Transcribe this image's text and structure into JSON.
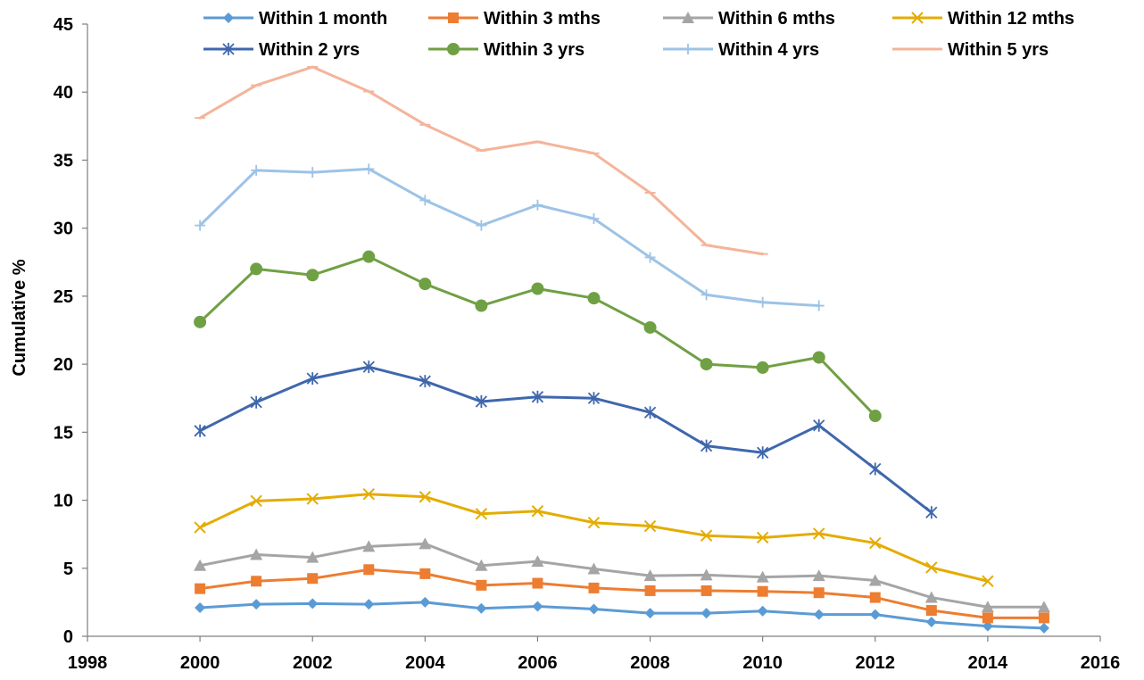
{
  "chart_data": {
    "type": "line",
    "title": "",
    "xlabel": "",
    "ylabel": "Cumulative %",
    "xlim": [
      1998,
      2016
    ],
    "ylim": [
      0,
      45
    ],
    "xticks": [
      "1998",
      "2000",
      "2002",
      "2004",
      "2006",
      "2008",
      "2010",
      "2012",
      "2014",
      "2016"
    ],
    "yticks": [
      "0",
      "5",
      "10",
      "15",
      "20",
      "25",
      "30",
      "35",
      "40",
      "45"
    ],
    "grid": false,
    "legend_position": "top",
    "series": [
      {
        "name": "Within 1 month",
        "color": "#5B9BD5",
        "marker": "diamond",
        "x": [
          2000,
          2001,
          2002,
          2003,
          2004,
          2005,
          2006,
          2007,
          2008,
          2009,
          2010,
          2011,
          2012,
          2013,
          2014,
          2015
        ],
        "values": [
          2.1,
          2.35,
          2.4,
          2.35,
          2.5,
          2.05,
          2.2,
          2.0,
          1.7,
          1.7,
          1.85,
          1.6,
          1.6,
          1.05,
          0.75,
          0.6
        ]
      },
      {
        "name": "Within 3 mths",
        "color": "#ED7D31",
        "marker": "square",
        "x": [
          2000,
          2001,
          2002,
          2003,
          2004,
          2005,
          2006,
          2007,
          2008,
          2009,
          2010,
          2011,
          2012,
          2013,
          2014,
          2015
        ],
        "values": [
          3.5,
          4.05,
          4.25,
          4.9,
          4.6,
          3.75,
          3.9,
          3.55,
          3.35,
          3.35,
          3.3,
          3.2,
          2.85,
          1.9,
          1.35,
          1.35
        ]
      },
      {
        "name": "Within 6 mths",
        "color": "#A5A5A5",
        "marker": "triangle",
        "x": [
          2000,
          2001,
          2002,
          2003,
          2004,
          2005,
          2006,
          2007,
          2008,
          2009,
          2010,
          2011,
          2012,
          2013,
          2014,
          2015
        ],
        "values": [
          5.2,
          6.0,
          5.8,
          6.6,
          6.8,
          5.2,
          5.5,
          4.95,
          4.45,
          4.5,
          4.35,
          4.45,
          4.1,
          2.85,
          2.15,
          2.15
        ]
      },
      {
        "name": "Within 12 mths",
        "color": "#E4AC00",
        "marker": "x",
        "x": [
          2000,
          2001,
          2002,
          2003,
          2004,
          2005,
          2006,
          2007,
          2008,
          2009,
          2010,
          2011,
          2012,
          2013,
          2014
        ],
        "values": [
          8.0,
          9.95,
          10.1,
          10.45,
          10.25,
          9.0,
          9.2,
          8.35,
          8.1,
          7.4,
          7.25,
          7.55,
          6.85,
          5.05,
          4.05
        ]
      },
      {
        "name": "Within 2 yrs",
        "color": "#3F67AD",
        "marker": "asterisk",
        "x": [
          2000,
          2001,
          2002,
          2003,
          2004,
          2005,
          2006,
          2007,
          2008,
          2009,
          2010,
          2011,
          2012,
          2013
        ],
        "values": [
          15.1,
          17.2,
          18.95,
          19.8,
          18.75,
          17.25,
          17.6,
          17.5,
          16.45,
          14.0,
          13.5,
          15.5,
          12.3,
          9.1
        ]
      },
      {
        "name": "Within 3 yrs",
        "color": "#70A044",
        "marker": "circle",
        "x": [
          2000,
          2001,
          2002,
          2003,
          2004,
          2005,
          2006,
          2007,
          2008,
          2009,
          2010,
          2011,
          2012
        ],
        "values": [
          23.1,
          27.0,
          26.55,
          27.9,
          25.9,
          24.3,
          25.55,
          24.85,
          22.7,
          20.0,
          19.75,
          20.5,
          16.2
        ]
      },
      {
        "name": "Within 4 yrs",
        "color": "#9DC3E6",
        "marker": "plus",
        "x": [
          2000,
          2001,
          2002,
          2003,
          2004,
          2005,
          2006,
          2007,
          2008,
          2009,
          2010,
          2011
        ],
        "values": [
          30.2,
          34.25,
          34.1,
          34.35,
          32.05,
          30.2,
          31.7,
          30.7,
          27.85,
          25.1,
          24.55,
          24.3
        ]
      },
      {
        "name": "Within 5 yrs",
        "color": "#F4B49A",
        "marker": "dash",
        "x": [
          2000,
          2001,
          2002,
          2003,
          2004,
          2005,
          2006,
          2007,
          2008,
          2009,
          2010
        ],
        "values": [
          38.1,
          40.5,
          41.85,
          40.05,
          37.6,
          35.7,
          36.35,
          35.5,
          32.6,
          28.75,
          28.1
        ]
      }
    ]
  }
}
